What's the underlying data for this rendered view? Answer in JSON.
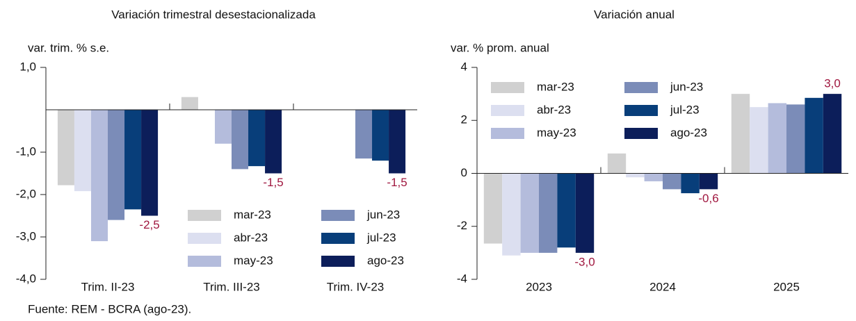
{
  "chart_data": [
    {
      "type": "bar",
      "title": "Variación trimestral desestacionalizada",
      "y_label": "var. trim. % s.e.",
      "categories": [
        "Trim. II-23",
        "Trim. III-23",
        "Trim. IV-23"
      ],
      "series": [
        {
          "name": "mar-23",
          "color": "#d0d0d0",
          "values": [
            -1.78,
            0.3,
            null
          ]
        },
        {
          "name": "abr-23",
          "color": "#dcdff0",
          "values": [
            -1.92,
            null,
            null
          ]
        },
        {
          "name": "may-23",
          "color": "#b4bcdc",
          "values": [
            -3.1,
            -0.8,
            null
          ]
        },
        {
          "name": "jun-23",
          "color": "#7b8cb8",
          "values": [
            -2.6,
            -1.4,
            -1.15
          ]
        },
        {
          "name": "jul-23",
          "color": "#083e7a",
          "values": [
            -2.35,
            -1.33,
            -1.2
          ]
        },
        {
          "name": "ago-23",
          "color": "#0c1e5a",
          "values": [
            -2.5,
            -1.5,
            -1.5
          ],
          "value_labels": [
            "-2,5",
            "-1,5",
            "-1,5"
          ]
        }
      ],
      "ylim": [
        -4,
        1
      ],
      "yticks": [
        {
          "value": 1,
          "label": "1,0"
        },
        {
          "value": -1,
          "label": "-1,0"
        },
        {
          "value": -2,
          "label": "-2,0"
        },
        {
          "value": -3,
          "label": "-3,0"
        },
        {
          "value": -4,
          "label": "-4,0"
        }
      ],
      "grid": false,
      "legend": "lower right",
      "value_label_color": "#a0173f"
    },
    {
      "type": "bar",
      "title": "Variación anual",
      "y_label": "var. % prom. anual",
      "categories": [
        "2023",
        "2024",
        "2025"
      ],
      "series": [
        {
          "name": "mar-23",
          "color": "#d0d0d0",
          "values": [
            -2.65,
            0.75,
            3.0
          ]
        },
        {
          "name": "abr-23",
          "color": "#dcdff0",
          "values": [
            -3.1,
            -0.15,
            2.5
          ]
        },
        {
          "name": "may-23",
          "color": "#b4bcdc",
          "values": [
            -3.0,
            -0.3,
            2.65
          ]
        },
        {
          "name": "jun-23",
          "color": "#7b8cb8",
          "values": [
            -3.0,
            -0.6,
            2.6
          ]
        },
        {
          "name": "jul-23",
          "color": "#083e7a",
          "values": [
            -2.8,
            -0.75,
            2.85
          ]
        },
        {
          "name": "ago-23",
          "color": "#0c1e5a",
          "values": [
            -3.0,
            -0.6,
            3.0
          ],
          "value_labels": [
            "-3,0",
            "-0,6",
            "3,0"
          ]
        }
      ],
      "ylim": [
        -4,
        4
      ],
      "yticks": [
        4,
        2,
        0,
        -2,
        -4
      ],
      "grid": false,
      "legend": "upper left",
      "value_label_color": "#a0173f"
    }
  ],
  "source": "Fuente: REM - BCRA (ago-23)."
}
